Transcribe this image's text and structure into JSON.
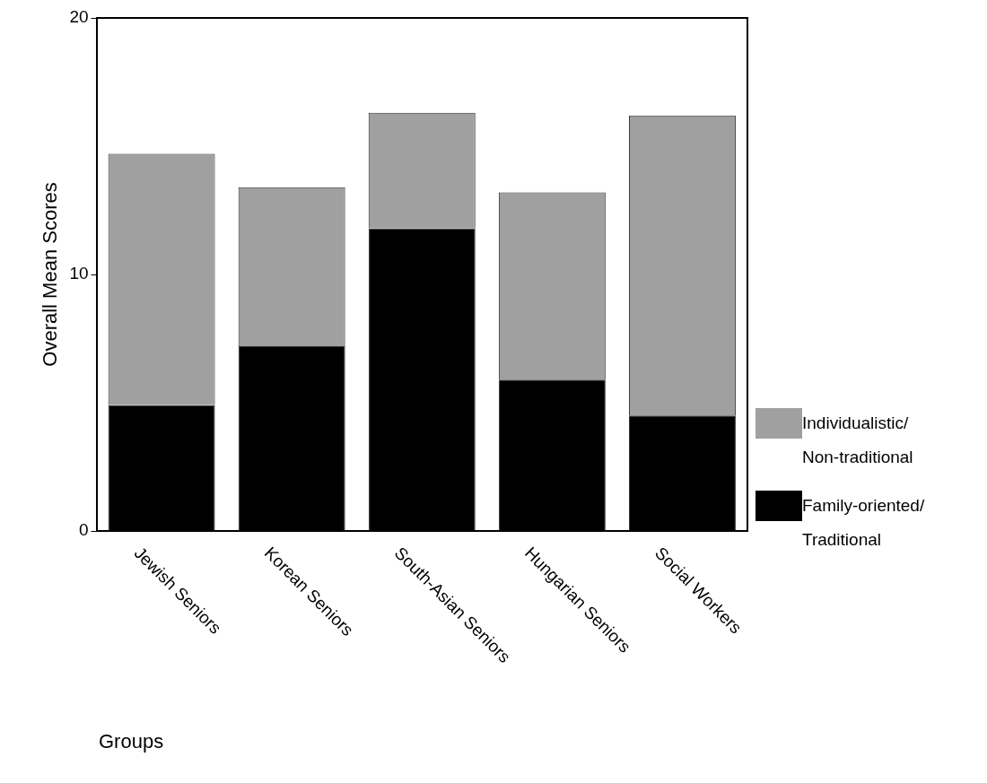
{
  "chart_data": {
    "type": "bar",
    "stacked": true,
    "xlabel": "Groups",
    "ylabel": "Overall Mean Scores",
    "categories": [
      "Jewish Seniors",
      "Korean Seniors",
      "South-Asian Seniors",
      "Hungarian Seniors",
      "Social Workers"
    ],
    "series": [
      {
        "name": "Family-oriented/ Traditional",
        "color": "#000000",
        "values": [
          4.9,
          7.2,
          11.8,
          5.9,
          4.5
        ]
      },
      {
        "name": "Individualistic/ Non-traditional",
        "color": "#a0a0a0",
        "values": [
          9.8,
          6.2,
          4.5,
          7.3,
          11.7
        ]
      }
    ],
    "ylim": [
      0,
      20
    ],
    "yticks": [
      0,
      10,
      20
    ],
    "grid": false,
    "legend": "right"
  }
}
